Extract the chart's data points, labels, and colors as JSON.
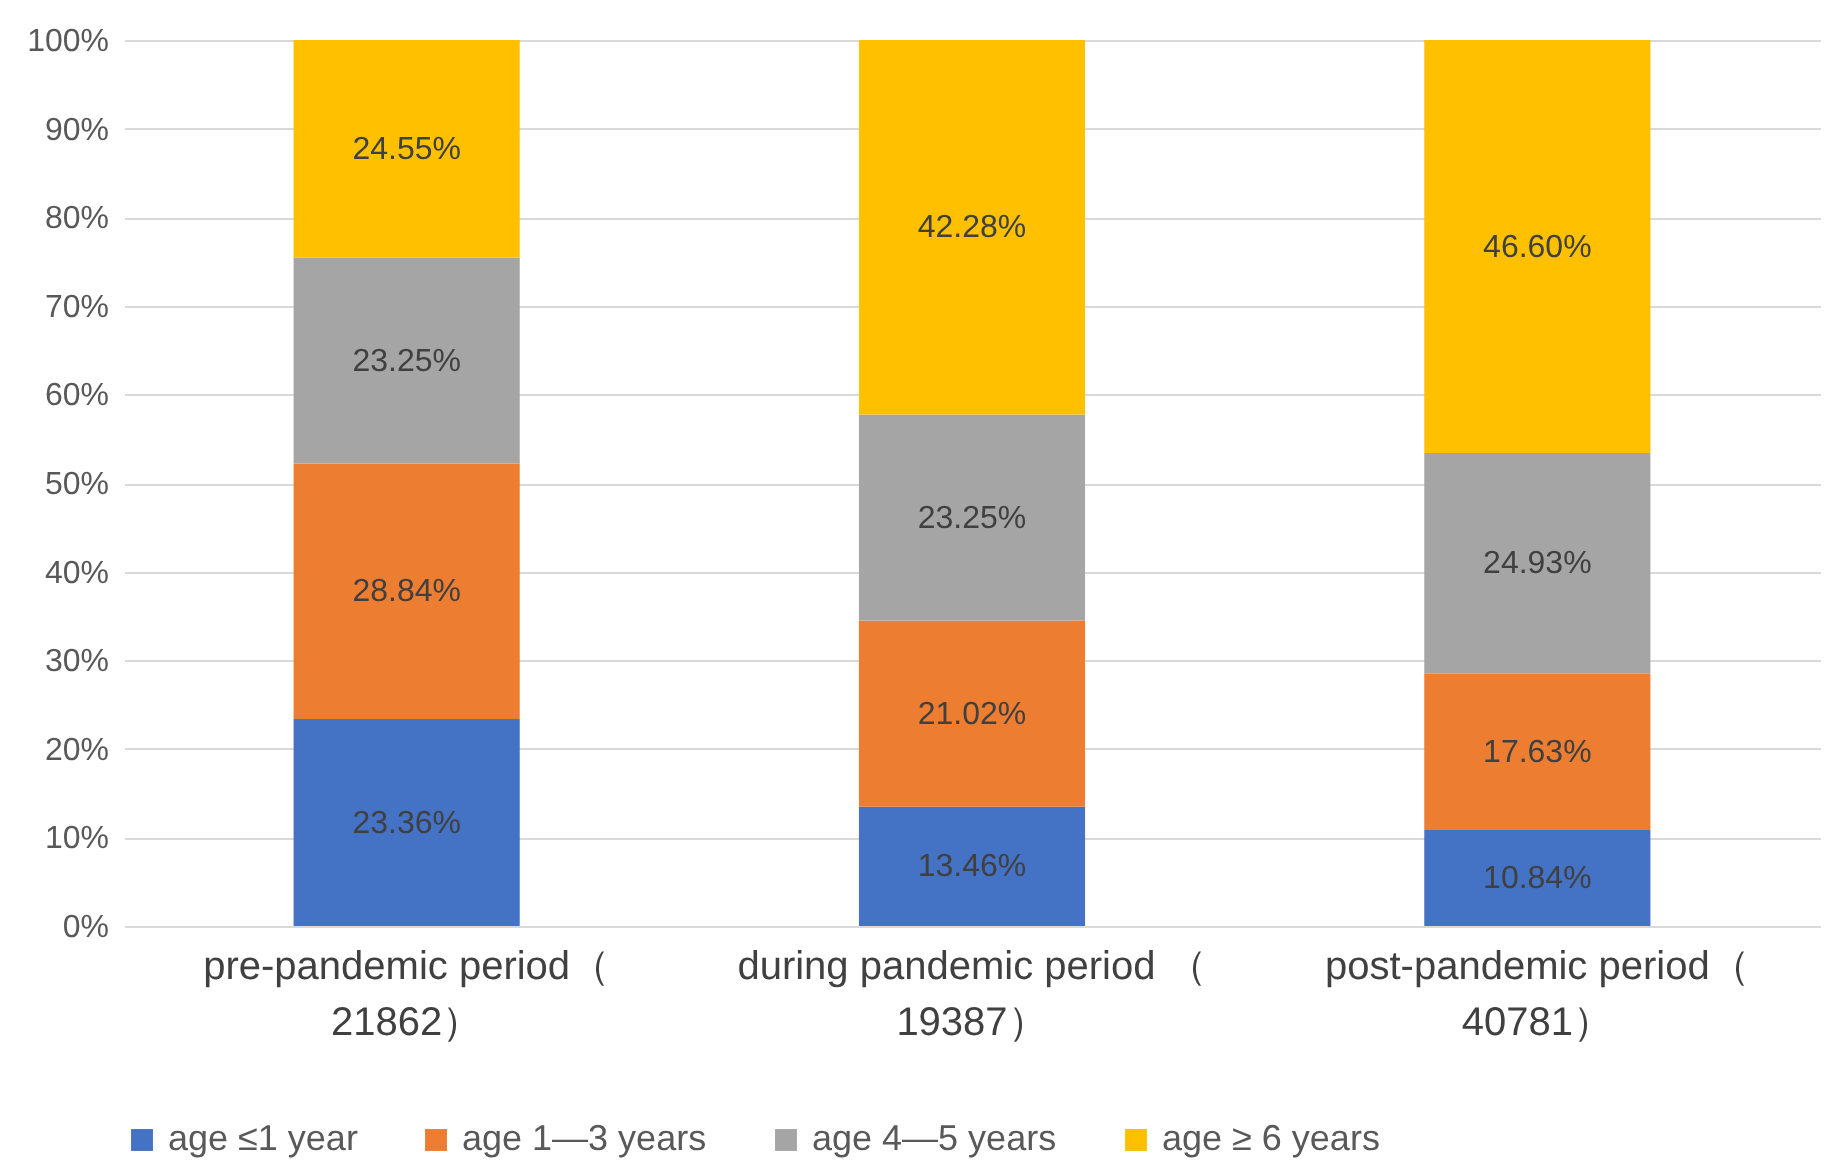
{
  "chart_data": {
    "type": "bar",
    "stacked": true,
    "categories": [
      "pre-pandemic period（21862）",
      "during pandemic period （19387）",
      "post-pandemic period（40781）"
    ],
    "series": [
      {
        "name": "age ≤1 year",
        "color": "#4472c4",
        "values": [
          23.36,
          13.46,
          10.84
        ],
        "value_labels": [
          "23.36%",
          "13.46%",
          "10.84%"
        ]
      },
      {
        "name": "age 1—3 years",
        "color": "#ed7d31",
        "values": [
          28.84,
          21.02,
          17.63
        ],
        "value_labels": [
          "28.84%",
          "21.02%",
          "17.63%"
        ]
      },
      {
        "name": "age 4—5 years",
        "color": "#a5a5a5",
        "values": [
          23.25,
          23.25,
          24.93
        ],
        "value_labels": [
          "23.25%",
          "23.25%",
          "24.93%"
        ]
      },
      {
        "name": "age ≥ 6 years",
        "color": "#ffc000",
        "values": [
          24.55,
          42.28,
          46.6
        ],
        "value_labels": [
          "24.55%",
          "42.28%",
          "46.60%"
        ]
      }
    ],
    "ylim": [
      0,
      100.01
    ],
    "yticks": [
      {
        "value": 0,
        "label": "0%"
      },
      {
        "value": 10,
        "label": "10%"
      },
      {
        "value": 20,
        "label": "20%"
      },
      {
        "value": 30,
        "label": "30%"
      },
      {
        "value": 40,
        "label": "40%"
      },
      {
        "value": 50,
        "label": "50%"
      },
      {
        "value": 60,
        "label": "60%"
      },
      {
        "value": 70,
        "label": "70%"
      },
      {
        "value": 80,
        "label": "80%"
      },
      {
        "value": 90,
        "label": "90%"
      },
      {
        "value": 100,
        "label": "100%"
      }
    ],
    "grid": "y",
    "legend": "bottom"
  }
}
